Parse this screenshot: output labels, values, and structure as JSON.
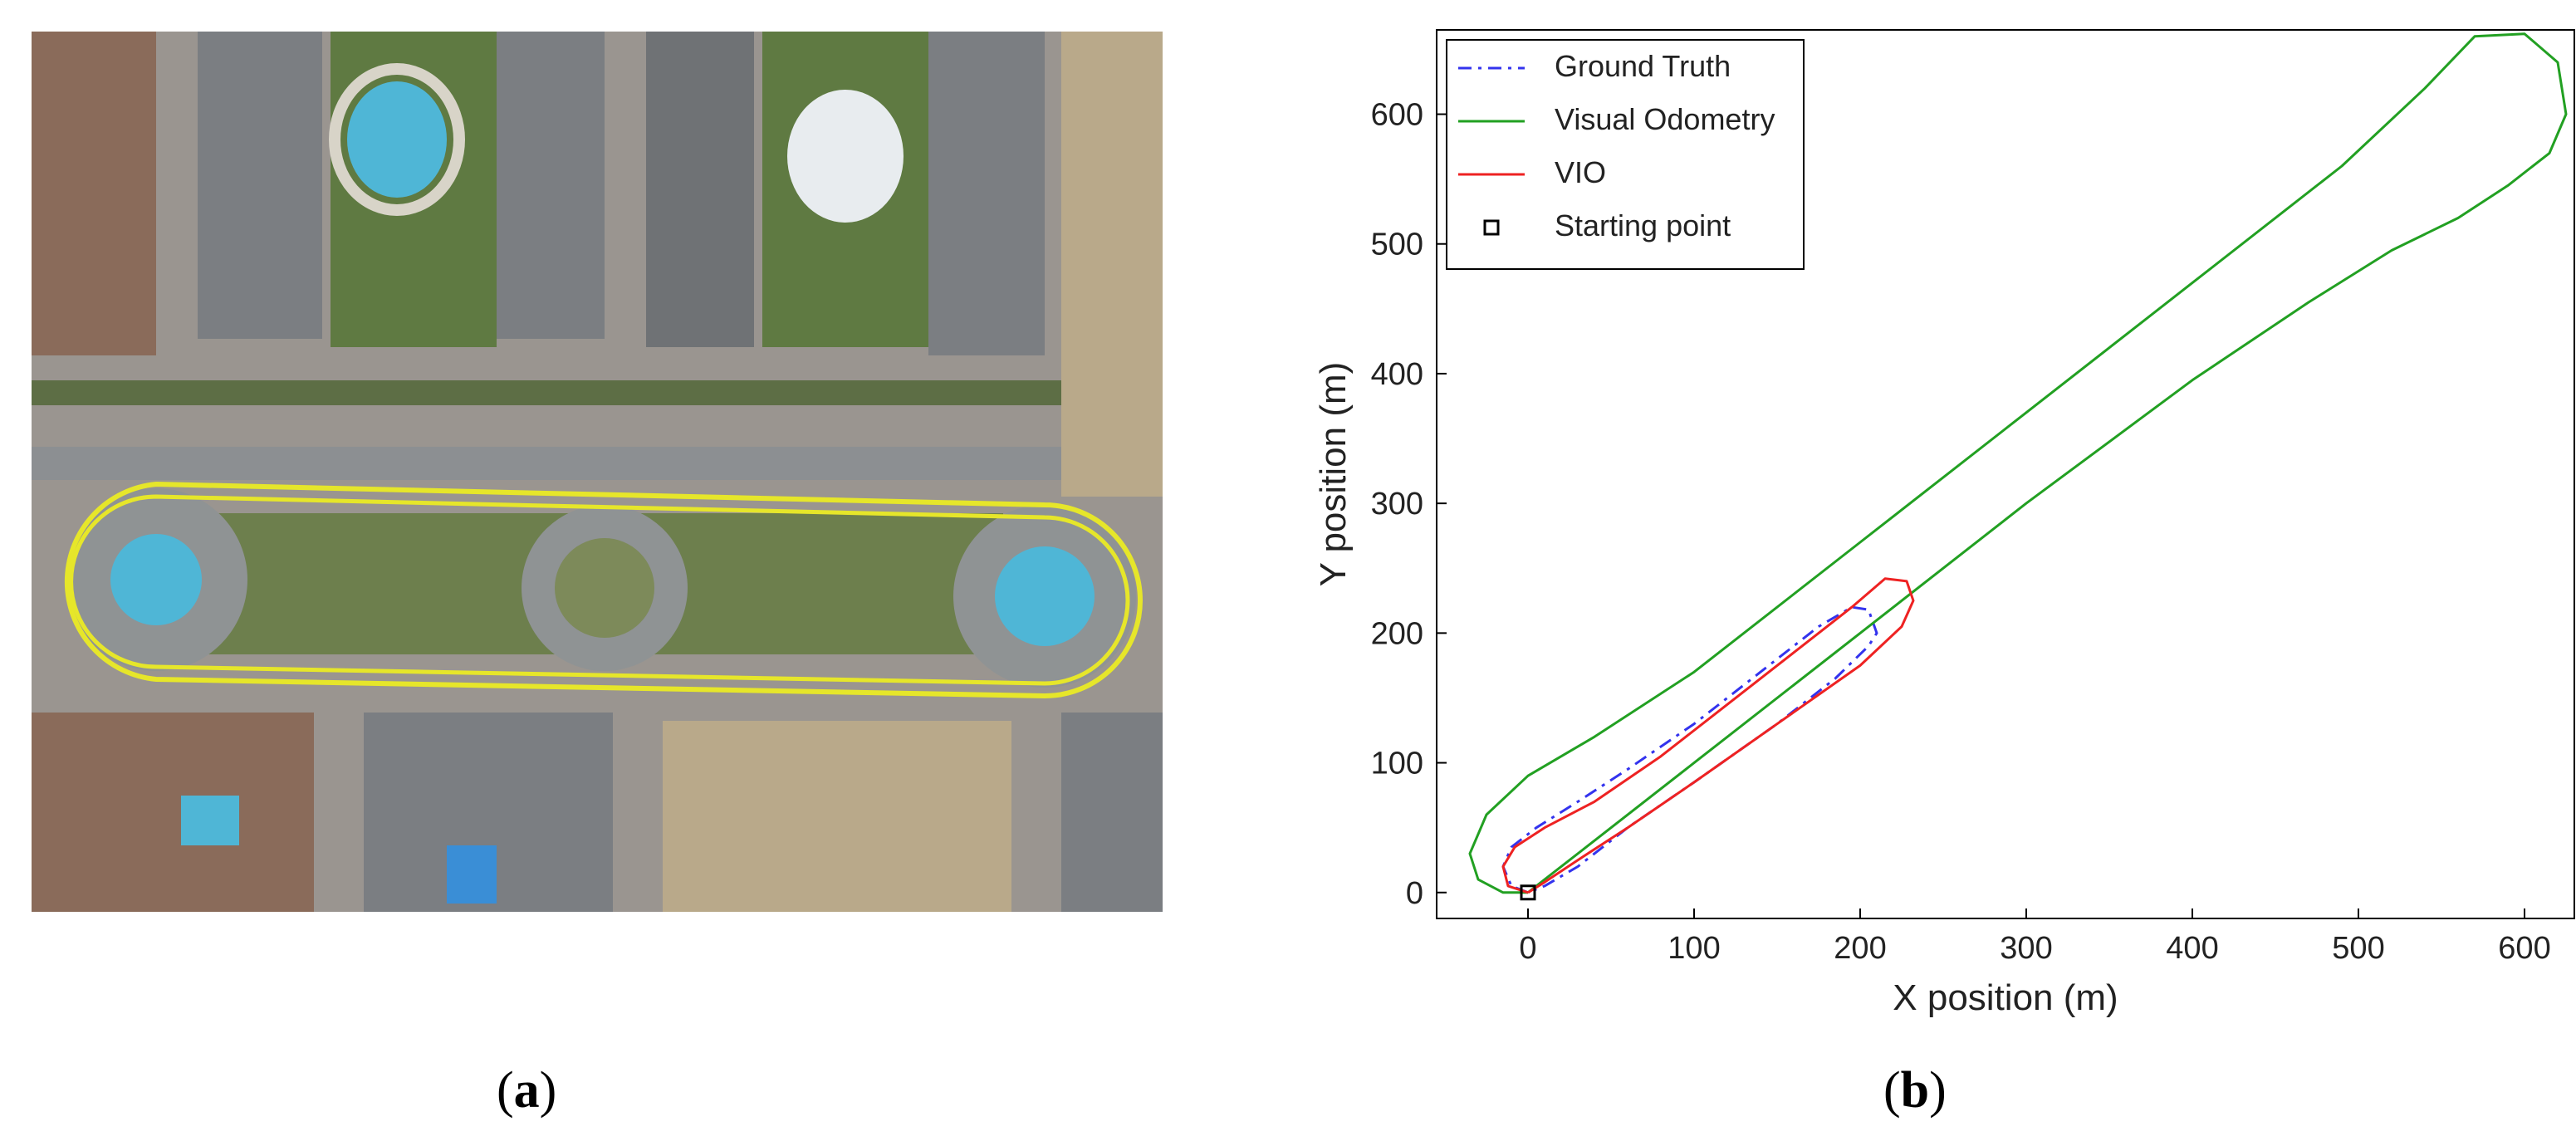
{
  "panels": {
    "a": {
      "paren_open": "(",
      "letter": "a",
      "paren_close": ")"
    },
    "b": {
      "paren_open": "(",
      "letter": "b",
      "paren_close": ")"
    }
  },
  "aerial": {
    "route_color": "#e6e62a",
    "colors": {
      "asphalt": "#8f9394",
      "grass": "#5f7a42",
      "pool": "#4fb6d6",
      "sand": "#b9a98a",
      "roof": "#7b7e82"
    }
  },
  "chart_data": {
    "type": "line",
    "xlabel": "X position (m)",
    "ylabel": "Y position (m)",
    "xlim": [
      -55,
      630
    ],
    "ylim": [
      -20,
      665
    ],
    "xticks": [
      0,
      100,
      200,
      300,
      400,
      500,
      600
    ],
    "yticks": [
      0,
      100,
      200,
      300,
      400,
      500,
      600
    ],
    "grid": false,
    "legend_position": "top-left",
    "series": [
      {
        "name": "Ground Truth",
        "color": "#3333ee",
        "style": "dash-dot",
        "x": [
          0,
          -10,
          -15,
          -10,
          5,
          30,
          60,
          100,
          140,
          175,
          195,
          205,
          210,
          205,
          185,
          150,
          100,
          60,
          30,
          10,
          0
        ],
        "y": [
          0,
          5,
          20,
          35,
          50,
          70,
          95,
          130,
          170,
          205,
          220,
          218,
          200,
          190,
          165,
          130,
          85,
          50,
          20,
          5,
          0
        ]
      },
      {
        "name": "Visual Odometry",
        "color": "#22a022",
        "style": "solid",
        "x": [
          0,
          -15,
          -30,
          -35,
          -25,
          0,
          40,
          100,
          200,
          300,
          400,
          490,
          540,
          570,
          600,
          620,
          625,
          615,
          590,
          560,
          520,
          470,
          400,
          300,
          200,
          100,
          40,
          10,
          0
        ],
        "y": [
          0,
          0,
          10,
          30,
          60,
          90,
          120,
          170,
          270,
          370,
          470,
          560,
          620,
          660,
          662,
          640,
          600,
          570,
          545,
          520,
          495,
          455,
          395,
          300,
          200,
          100,
          40,
          10,
          0
        ],
        "closed": false
      },
      {
        "name": "VIO",
        "color": "#ee2222",
        "style": "solid",
        "x": [
          0,
          -12,
          -15,
          -8,
          10,
          40,
          80,
          120,
          160,
          195,
          215,
          228,
          232,
          225,
          200,
          150,
          100,
          60,
          30,
          10,
          0
        ],
        "y": [
          0,
          5,
          20,
          35,
          50,
          70,
          105,
          145,
          185,
          220,
          242,
          240,
          225,
          205,
          175,
          130,
          85,
          50,
          25,
          8,
          0
        ]
      }
    ],
    "markers": [
      {
        "name": "Starting point",
        "x": 0,
        "y": 0,
        "shape": "square-open",
        "color": "#000000"
      }
    ]
  }
}
